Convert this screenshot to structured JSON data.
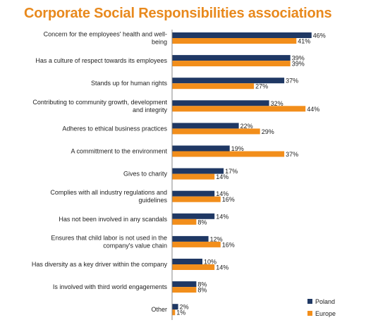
{
  "chart_data": {
    "type": "bar",
    "orientation": "horizontal",
    "title": "Corporate Social Responsibilities associations",
    "categories": [
      [
        "Concern for the employees' health and well-",
        "being"
      ],
      [
        "Has a culture of respect towards its employees"
      ],
      [
        "Stands up for human rights"
      ],
      [
        "Contributing to community growth, development",
        "and integrity"
      ],
      [
        "Adheres to ethical business practices"
      ],
      [
        "A committment to the environment"
      ],
      [
        "Gives to charity"
      ],
      [
        "Complies with all industry regulations and",
        "guidelines"
      ],
      [
        "Has not been involved in any scandals"
      ],
      [
        "Ensures that child labor is not used in the",
        "company's value chain"
      ],
      [
        "Has diversity as a key driver within the company"
      ],
      [
        "Is involved with third world engagements"
      ],
      [
        "Other"
      ]
    ],
    "series": [
      {
        "name": "Poland",
        "color": "#1f3864",
        "values": [
          46,
          39,
          37,
          32,
          22,
          19,
          17,
          14,
          14,
          12,
          10,
          8,
          2
        ]
      },
      {
        "name": "Europe",
        "color": "#f28e1b",
        "values": [
          41,
          39,
          27,
          44,
          29,
          37,
          14,
          16,
          8,
          16,
          14,
          8,
          1
        ]
      }
    ],
    "value_suffix": "%",
    "xlim": [
      0,
      50
    ],
    "grid": false,
    "legend": "bottom-right"
  }
}
